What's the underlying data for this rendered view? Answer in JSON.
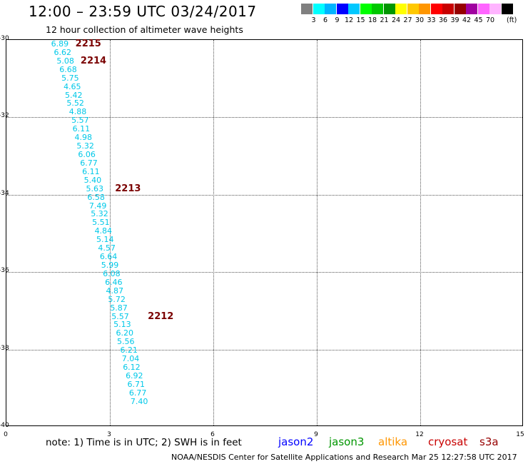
{
  "title": "12:00 – 23:59 UTC 03/24/2017",
  "subtitle": "12 hour collection of altimeter wave heights",
  "legend": {
    "unit": "(ft)",
    "swatches": [
      {
        "color": "#808080",
        "label": ""
      },
      {
        "color": "#00ffff",
        "label": "3"
      },
      {
        "color": "#00b4ff",
        "label": "6"
      },
      {
        "color": "#0000ff",
        "label": "9"
      },
      {
        "color": "#00c8ff",
        "label": "12"
      },
      {
        "color": "#00ff00",
        "label": "15"
      },
      {
        "color": "#00c800",
        "label": "18"
      },
      {
        "color": "#009600",
        "label": "21"
      },
      {
        "color": "#ffff00",
        "label": "24"
      },
      {
        "color": "#ffc800",
        "label": "27"
      },
      {
        "color": "#ff9600",
        "label": "30"
      },
      {
        "color": "#ff0000",
        "label": "33"
      },
      {
        "color": "#c80000",
        "label": "36"
      },
      {
        "color": "#960000",
        "label": "39"
      },
      {
        "color": "#a000a0",
        "label": "42"
      },
      {
        "color": "#ff64ff",
        "label": "45"
      },
      {
        "color": "#ffb4ff",
        "label": "70"
      },
      {
        "color": "#000000",
        "label": ""
      }
    ]
  },
  "map": {
    "lat_range": [
      -40,
      -30
    ],
    "lon_range": [
      0,
      15
    ],
    "y_ticks": [
      "-30",
      "-32",
      "-34",
      "-36",
      "-38",
      "-40"
    ],
    "x_ticks": [
      "0",
      "3",
      "6",
      "9",
      "12",
      "15"
    ]
  },
  "wave_heights": [
    {
      "lat": -30.0,
      "lon": 1.55,
      "value": "6.89"
    },
    {
      "lat": -30.22,
      "lon": 1.63,
      "value": "6.62"
    },
    {
      "lat": -30.44,
      "lon": 1.71,
      "value": "5.08"
    },
    {
      "lat": -30.66,
      "lon": 1.79,
      "value": "6.68"
    },
    {
      "lat": -30.88,
      "lon": 1.85,
      "value": "5.75"
    },
    {
      "lat": -31.1,
      "lon": 1.91,
      "value": "4.65"
    },
    {
      "lat": -31.32,
      "lon": 1.95,
      "value": "5.42"
    },
    {
      "lat": -31.54,
      "lon": 2.0,
      "value": "5.52"
    },
    {
      "lat": -31.76,
      "lon": 2.07,
      "value": "4.88"
    },
    {
      "lat": -31.98,
      "lon": 2.14,
      "value": "5.57"
    },
    {
      "lat": -32.2,
      "lon": 2.17,
      "value": "6.11"
    },
    {
      "lat": -32.42,
      "lon": 2.23,
      "value": "4.98"
    },
    {
      "lat": -32.64,
      "lon": 2.29,
      "value": "5.32"
    },
    {
      "lat": -32.86,
      "lon": 2.33,
      "value": "6.06"
    },
    {
      "lat": -33.08,
      "lon": 2.39,
      "value": "6.77"
    },
    {
      "lat": -33.3,
      "lon": 2.45,
      "value": "6.11"
    },
    {
      "lat": -33.52,
      "lon": 2.5,
      "value": "5.40"
    },
    {
      "lat": -33.74,
      "lon": 2.56,
      "value": "5.63"
    },
    {
      "lat": -33.96,
      "lon": 2.6,
      "value": "6.58"
    },
    {
      "lat": -34.18,
      "lon": 2.65,
      "value": "7.49"
    },
    {
      "lat": -34.4,
      "lon": 2.7,
      "value": "5.32"
    },
    {
      "lat": -34.62,
      "lon": 2.74,
      "value": "5.51"
    },
    {
      "lat": -34.84,
      "lon": 2.81,
      "value": "4.84"
    },
    {
      "lat": -35.06,
      "lon": 2.86,
      "value": "5.14"
    },
    {
      "lat": -35.28,
      "lon": 2.91,
      "value": "4.57"
    },
    {
      "lat": -35.5,
      "lon": 2.96,
      "value": "6.64"
    },
    {
      "lat": -35.72,
      "lon": 3.0,
      "value": "5.99"
    },
    {
      "lat": -35.94,
      "lon": 3.05,
      "value": "6.08"
    },
    {
      "lat": -36.16,
      "lon": 3.11,
      "value": "6.46"
    },
    {
      "lat": -36.38,
      "lon": 3.14,
      "value": "4.87"
    },
    {
      "lat": -36.6,
      "lon": 3.2,
      "value": "5.72"
    },
    {
      "lat": -36.82,
      "lon": 3.26,
      "value": "5.87"
    },
    {
      "lat": -37.04,
      "lon": 3.3,
      "value": "5.57"
    },
    {
      "lat": -37.26,
      "lon": 3.36,
      "value": "5.13"
    },
    {
      "lat": -37.48,
      "lon": 3.43,
      "value": "6.20"
    },
    {
      "lat": -37.7,
      "lon": 3.46,
      "value": "5.56"
    },
    {
      "lat": -37.92,
      "lon": 3.55,
      "value": "6.21"
    },
    {
      "lat": -38.14,
      "lon": 3.6,
      "value": "7.04"
    },
    {
      "lat": -38.36,
      "lon": 3.63,
      "value": "6.12"
    },
    {
      "lat": -38.58,
      "lon": 3.71,
      "value": "6.92"
    },
    {
      "lat": -38.8,
      "lon": 3.76,
      "value": "6.71"
    },
    {
      "lat": -39.02,
      "lon": 3.81,
      "value": "6.77"
    },
    {
      "lat": -39.24,
      "lon": 3.85,
      "value": "7.40"
    }
  ],
  "pass_labels": [
    {
      "lat": -30.0,
      "lon": 2.0,
      "text": "2215"
    },
    {
      "lat": -30.44,
      "lon": 2.15,
      "text": "2214"
    },
    {
      "lat": -33.74,
      "lon": 3.15,
      "text": "2213"
    },
    {
      "lat": -37.04,
      "lon": 4.1,
      "text": "2212"
    }
  ],
  "note": "note:  1) Time is in UTC;  2) SWH is in feet",
  "missions": [
    {
      "name": "jason2",
      "color": "#0000ff"
    },
    {
      "name": "jason3",
      "color": "#009600"
    },
    {
      "name": "altika",
      "color": "#ff9600"
    },
    {
      "name": "cryosat",
      "color": "#c80000"
    },
    {
      "name": "s3a",
      "color": "#960000"
    }
  ],
  "footer": "NOAA/NESDIS Center for Satellite Applications and Research    Mar 25 12:27:58 UTC 2017"
}
